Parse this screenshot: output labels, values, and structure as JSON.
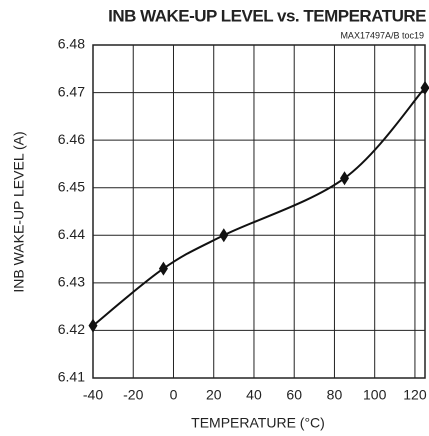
{
  "chart_data": {
    "type": "line",
    "title": "INB WAKE-UP LEVEL vs. TEMPERATURE",
    "subtitle": "MAX17497A/B toc19",
    "x_label": "TEMPERATURE (°C)",
    "y_label": "INB WAKE-UP LEVEL (A)",
    "x": [
      -40,
      -5,
      25,
      85,
      125
    ],
    "values": [
      6.421,
      6.433,
      6.44,
      6.452,
      6.471
    ],
    "color": "#111111",
    "xlim": [
      -40,
      125
    ],
    "xticks": [
      -40,
      -20,
      0,
      20,
      40,
      60,
      80,
      100,
      120
    ],
    "ylim": [
      6.41,
      6.48
    ],
    "yticks": [
      6.41,
      6.42,
      6.43,
      6.44,
      6.45,
      6.46,
      6.47,
      6.48
    ],
    "grid": true
  }
}
